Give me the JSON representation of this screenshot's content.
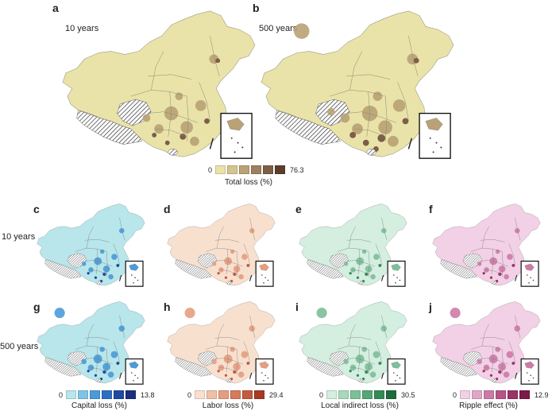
{
  "panels": {
    "a": {
      "letter": "a",
      "label": "10 years"
    },
    "b": {
      "letter": "b",
      "label": "500 years"
    },
    "c": {
      "letter": "c"
    },
    "d": {
      "letter": "d"
    },
    "e": {
      "letter": "e"
    },
    "f": {
      "letter": "f"
    },
    "g": {
      "letter": "g"
    },
    "h": {
      "letter": "h"
    },
    "i": {
      "letter": "i"
    },
    "j": {
      "letter": "j"
    }
  },
  "row_labels": {
    "row2": "10 years",
    "row3": "500 years"
  },
  "legends": {
    "total": {
      "min": "0",
      "max": "76.3",
      "title": "Total loss (%)",
      "colors": [
        "#e9e3a9",
        "#d4c48d",
        "#b9a275",
        "#9c8060",
        "#7d5e47",
        "#5a3e2b"
      ]
    },
    "capital": {
      "min": "0",
      "max": "13.8",
      "title": "Capital loss (%)",
      "colors": [
        "#b8e6ea",
        "#7fc4e6",
        "#4b9bd9",
        "#2e6fc2",
        "#1f4aa0",
        "#1a2f7e"
      ]
    },
    "labor": {
      "min": "0",
      "max": "29.4",
      "title": "Labor loss (%)",
      "colors": [
        "#f8e0cf",
        "#efc0a6",
        "#e59e80",
        "#d67a5d",
        "#c45a3f",
        "#a73a24"
      ]
    },
    "indirect": {
      "min": "0",
      "max": "30.5",
      "title": "Local indirect loss (%)",
      "colors": [
        "#d4eee0",
        "#a8d8bd",
        "#7cbf98",
        "#55a676",
        "#348a56",
        "#1e6b3b"
      ]
    },
    "ripple": {
      "min": "0",
      "max": "12.9",
      "title": "Ripple effect (%)",
      "colors": [
        "#f2d0e6",
        "#e0a6c8",
        "#cc7ba8",
        "#b65487",
        "#9b3367",
        "#7d1a48"
      ]
    }
  },
  "map_colors": {
    "total": {
      "base": "#e9e3a9",
      "mid": "#b9a275",
      "dark": "#7d5e47"
    },
    "capital": {
      "base": "#b8e6ea",
      "mid": "#4b9bd9",
      "dark": "#1f4aa0"
    },
    "labor": {
      "base": "#f8e0cf",
      "mid": "#e59e80",
      "dark": "#c45a3f"
    },
    "indirect": {
      "base": "#d4eee0",
      "mid": "#7cbf98",
      "dark": "#348a56"
    },
    "ripple": {
      "base": "#f2d0e6",
      "mid": "#cc7ba8",
      "dark": "#9b3367"
    }
  }
}
